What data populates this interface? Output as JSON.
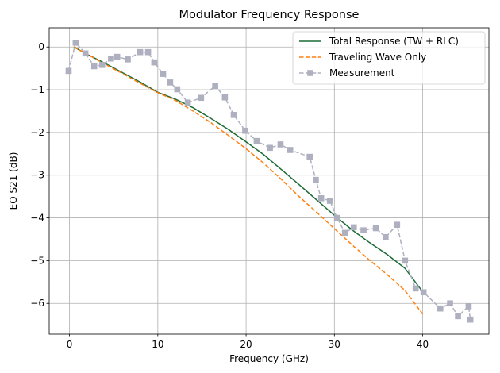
{
  "chart_data": {
    "type": "line",
    "title": "Modulator Frequency Response",
    "xlabel": "Frequency (GHz)",
    "ylabel": "EO S21 (dB)",
    "xlim": [
      -2.3,
      47.5
    ],
    "ylim": [
      -6.72,
      0.45
    ],
    "xticks": [
      0,
      10,
      20,
      30,
      40
    ],
    "yticks": [
      0,
      -1,
      -2,
      -3,
      -4,
      -5,
      -6
    ],
    "xtick_labels": [
      "0",
      "10",
      "20",
      "30",
      "40"
    ],
    "ytick_labels": [
      "0",
      "−1",
      "−2",
      "−3",
      "−4",
      "−5",
      "−6"
    ],
    "grid": true,
    "legend_position": "top-right",
    "series": [
      {
        "name": "Total Response (TW + RLC)",
        "color": "#1b6b35",
        "style": "solid",
        "marker": "none",
        "x": [
          0.5,
          2,
          4,
          6,
          8,
          10,
          12,
          14,
          16,
          18,
          20,
          22,
          24,
          26,
          28,
          30,
          32,
          34,
          36,
          38,
          40
        ],
        "y": [
          0.0,
          -0.17,
          -0.38,
          -0.6,
          -0.82,
          -1.06,
          -1.22,
          -1.42,
          -1.67,
          -1.93,
          -2.22,
          -2.52,
          -2.87,
          -3.22,
          -3.58,
          -3.94,
          -4.28,
          -4.58,
          -4.86,
          -5.18,
          -5.73
        ]
      },
      {
        "name": "Traveling Wave Only",
        "color": "#ff7f0e",
        "style": "dashed",
        "marker": "none",
        "x": [
          0.5,
          2,
          4,
          6,
          8,
          10,
          12,
          14,
          16,
          18,
          20,
          22,
          24,
          26,
          28,
          30,
          32,
          34,
          36,
          38,
          40
        ],
        "y": [
          0.0,
          -0.17,
          -0.4,
          -0.62,
          -0.85,
          -1.07,
          -1.25,
          -1.5,
          -1.77,
          -2.07,
          -2.38,
          -2.72,
          -3.1,
          -3.5,
          -3.87,
          -4.25,
          -4.63,
          -4.99,
          -5.33,
          -5.7,
          -6.25
        ]
      },
      {
        "name": "Measurement",
        "color": "#aeb0c0",
        "style": "dashed",
        "marker": "square",
        "x": [
          -0.1,
          0.7,
          1.8,
          2.8,
          3.7,
          4.7,
          5.4,
          6.6,
          8.0,
          8.9,
          9.6,
          10.6,
          11.4,
          12.2,
          13.4,
          14.9,
          16.5,
          17.6,
          18.6,
          19.9,
          21.2,
          22.7,
          23.9,
          25.0,
          27.2,
          27.9,
          28.5,
          29.5,
          30.3,
          31.2,
          32.2,
          33.3,
          34.7,
          35.8,
          37.1,
          38.0,
          39.2,
          40.1,
          42.0,
          43.1,
          44.0,
          45.2,
          45.4
        ],
        "y": [
          -0.56,
          0.1,
          -0.15,
          -0.45,
          -0.42,
          -0.27,
          -0.23,
          -0.29,
          -0.12,
          -0.12,
          -0.36,
          -0.63,
          -0.83,
          -0.99,
          -1.3,
          -1.19,
          -0.91,
          -1.18,
          -1.59,
          -1.96,
          -2.2,
          -2.36,
          -2.28,
          -2.41,
          -2.57,
          -3.11,
          -3.54,
          -3.6,
          -4.0,
          -4.35,
          -4.22,
          -4.29,
          -4.24,
          -4.45,
          -4.16,
          -5.0,
          -5.65,
          -5.74,
          -6.12,
          -6.0,
          -6.3,
          -6.07,
          -6.38
        ]
      }
    ]
  }
}
